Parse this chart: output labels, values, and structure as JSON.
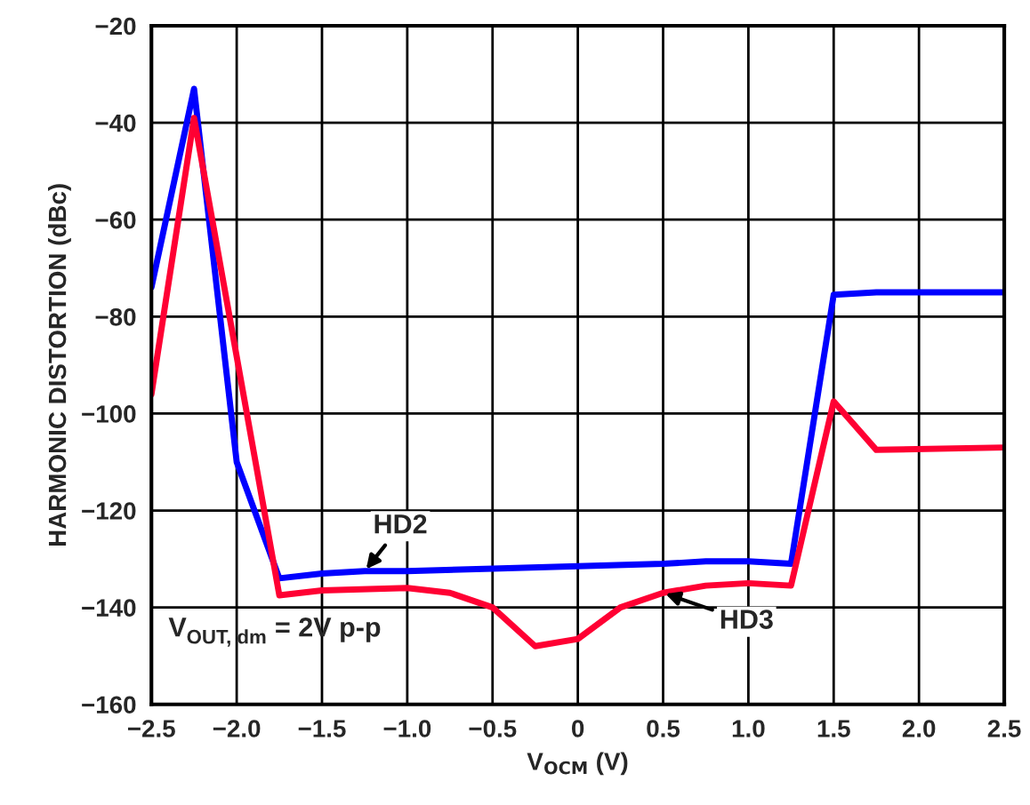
{
  "chart_data": {
    "type": "line",
    "xlabel": "V$_{OCM}$ (V)",
    "ylabel": "HARMONIC DISTORTION (dBc)",
    "xlim": [
      -2.5,
      2.5
    ],
    "xticks": [
      -2.5,
      {
        "value": -2,
        "label": "−2.0"
      },
      -1.5,
      {
        "value": -1,
        "label": "−1.0"
      },
      -0.5,
      0,
      0.5,
      {
        "value": 1,
        "label": "1.0"
      },
      1.5,
      {
        "value": 2,
        "label": "2.0"
      },
      2.5
    ],
    "ylim": [
      -160,
      -20
    ],
    "yticks": [
      -160,
      -140,
      -120,
      -100,
      -80,
      -60,
      -40,
      -20
    ],
    "grid": true,
    "legend": false,
    "line_style": "solid",
    "marker": "none",
    "series": [
      {
        "color": "#0000ff",
        "x": [
          -2.5,
          -2.25,
          -2.0,
          -1.75,
          -1.5,
          -1.25,
          -1.0,
          -0.5,
          0,
          0.5,
          0.75,
          1.0,
          1.25,
          1.5,
          1.75,
          2.5
        ],
        "values": [
          -74,
          -33,
          -110,
          -134,
          -133,
          -132.5,
          -132.5,
          -132,
          -131.5,
          -131,
          -130.5,
          -130.5,
          -131,
          -75.5,
          -75,
          -75
        ]
      },
      {
        "color": "#ff0033",
        "x": [
          -2.5,
          -2.25,
          -1.75,
          -1.5,
          -1.0,
          -0.75,
          -0.5,
          -0.25,
          0,
          0.25,
          0.5,
          0.75,
          1.0,
          1.25,
          1.5,
          1.75,
          2.5
        ],
        "values": [
          -96,
          -39,
          -137.5,
          -136.5,
          -136,
          -137,
          -140,
          -148,
          -146.5,
          -140,
          -137,
          -135.5,
          -135,
          -135.5,
          -97.5,
          -107.5,
          -107
        ]
      }
    ],
    "annotations": [
      {
        "text": "HD2",
        "x": -1.25,
        "y": -132.5
      },
      {
        "text": "HD3",
        "x": 0.5,
        "y": -137
      },
      "V$_{OUT, dm}$ = 2V p-p"
    ]
  }
}
